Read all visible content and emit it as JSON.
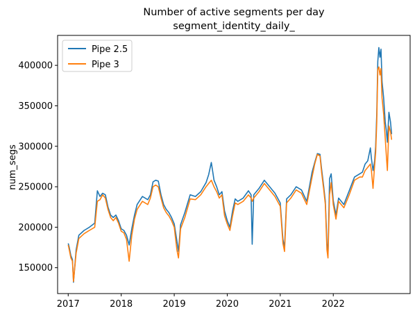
{
  "chart_data": {
    "type": "line",
    "title": "Number of active segments per day",
    "subtitle": "segment_identity_daily_",
    "xlabel": "",
    "ylabel": "num_segs",
    "xlim": [
      2016.8,
      2023.45
    ],
    "ylim": [
      118000,
      437000
    ],
    "x_ticks": [
      2017,
      2018,
      2019,
      2020,
      2021,
      2022
    ],
    "x_tick_labels": [
      "2017",
      "2018",
      "2019",
      "2020",
      "2021",
      "2022"
    ],
    "y_ticks": [
      150000,
      200000,
      250000,
      300000,
      350000,
      400000
    ],
    "y_tick_labels": [
      "150000",
      "200000",
      "250000",
      "300000",
      "350000",
      "400000"
    ],
    "grid": false,
    "legend_position": "top-left",
    "series": [
      {
        "name": "Pipe 2.5",
        "color": "#1f77b4",
        "x": [
          2017.0,
          2017.02,
          2017.05,
          2017.08,
          2017.1,
          2017.15,
          2017.2,
          2017.3,
          2017.4,
          2017.5,
          2017.55,
          2017.6,
          2017.65,
          2017.7,
          2017.75,
          2017.8,
          2017.85,
          2017.9,
          2017.95,
          2018.0,
          2018.05,
          2018.1,
          2018.15,
          2018.2,
          2018.25,
          2018.3,
          2018.4,
          2018.5,
          2018.55,
          2018.6,
          2018.65,
          2018.7,
          2018.75,
          2018.8,
          2018.85,
          2018.9,
          2018.95,
          2019.0,
          2019.05,
          2019.08,
          2019.12,
          2019.2,
          2019.3,
          2019.4,
          2019.5,
          2019.6,
          2019.65,
          2019.7,
          2019.75,
          2019.8,
          2019.85,
          2019.9,
          2019.95,
          2020.0,
          2020.05,
          2020.1,
          2020.15,
          2020.2,
          2020.3,
          2020.4,
          2020.45,
          2020.47,
          2020.5,
          2020.6,
          2020.7,
          2020.8,
          2020.9,
          2021.0,
          2021.05,
          2021.08,
          2021.12,
          2021.2,
          2021.3,
          2021.4,
          2021.5,
          2021.6,
          2021.65,
          2021.7,
          2021.75,
          2021.78,
          2021.82,
          2021.85,
          2021.88,
          2021.9,
          2021.93,
          2021.96,
          2022.0,
          2022.05,
          2022.1,
          2022.2,
          2022.3,
          2022.4,
          2022.5,
          2022.55,
          2022.6,
          2022.65,
          2022.7,
          2022.72,
          2022.75,
          2022.78,
          2022.8,
          2022.82,
          2022.84,
          2022.86,
          2022.88,
          2022.9,
          2022.92,
          2022.95,
          2022.98,
          2023.0,
          2023.02,
          2023.05,
          2023.08,
          2023.1
        ],
        "values": [
          180000,
          175000,
          165000,
          160000,
          132000,
          172000,
          190000,
          196000,
          200000,
          205000,
          245000,
          238000,
          242000,
          240000,
          225000,
          215000,
          212000,
          215000,
          208000,
          198000,
          196000,
          190000,
          178000,
          198000,
          215000,
          228000,
          238000,
          234000,
          240000,
          256000,
          258000,
          257000,
          240000,
          228000,
          222000,
          218000,
          212000,
          204000,
          183000,
          170000,
          203000,
          218000,
          240000,
          238000,
          244000,
          255000,
          265000,
          280000,
          258000,
          250000,
          240000,
          244000,
          220000,
          208000,
          200000,
          220000,
          235000,
          232000,
          236000,
          245000,
          240000,
          179000,
          240000,
          248000,
          258000,
          250000,
          242000,
          230000,
          185000,
          175000,
          235000,
          240000,
          250000,
          246000,
          232000,
          268000,
          280000,
          291000,
          290000,
          272000,
          250000,
          232000,
          180000,
          165000,
          260000,
          266000,
          233000,
          215000,
          236000,
          228000,
          245000,
          262000,
          266000,
          268000,
          278000,
          282000,
          298000,
          285000,
          270000,
          282000,
          300000,
          340000,
          405000,
          422000,
          410000,
          420000,
          380000,
          360000,
          330000,
          320000,
          305000,
          342000,
          330000,
          315000
        ]
      },
      {
        "name": "Pipe 3",
        "color": "#ff7f0e",
        "x": [
          2017.0,
          2017.02,
          2017.05,
          2017.08,
          2017.1,
          2017.15,
          2017.2,
          2017.3,
          2017.4,
          2017.5,
          2017.55,
          2017.6,
          2017.65,
          2017.7,
          2017.75,
          2017.8,
          2017.85,
          2017.9,
          2017.95,
          2018.0,
          2018.05,
          2018.1,
          2018.15,
          2018.2,
          2018.25,
          2018.3,
          2018.4,
          2018.5,
          2018.55,
          2018.6,
          2018.65,
          2018.7,
          2018.75,
          2018.8,
          2018.85,
          2018.9,
          2018.95,
          2019.0,
          2019.05,
          2019.08,
          2019.12,
          2019.2,
          2019.3,
          2019.4,
          2019.5,
          2019.6,
          2019.65,
          2019.7,
          2019.75,
          2019.8,
          2019.85,
          2019.9,
          2019.95,
          2020.0,
          2020.05,
          2020.1,
          2020.15,
          2020.2,
          2020.3,
          2020.4,
          2020.45,
          2020.47,
          2020.5,
          2020.6,
          2020.7,
          2020.8,
          2020.9,
          2021.0,
          2021.05,
          2021.08,
          2021.12,
          2021.2,
          2021.3,
          2021.4,
          2021.5,
          2021.6,
          2021.65,
          2021.7,
          2021.75,
          2021.78,
          2021.82,
          2021.85,
          2021.88,
          2021.9,
          2021.93,
          2021.96,
          2022.0,
          2022.05,
          2022.1,
          2022.2,
          2022.3,
          2022.4,
          2022.5,
          2022.55,
          2022.6,
          2022.65,
          2022.7,
          2022.72,
          2022.75,
          2022.78,
          2022.8,
          2022.82,
          2022.84,
          2022.86,
          2022.88,
          2022.9,
          2022.92,
          2022.95,
          2022.98,
          2023.0,
          2023.02,
          2023.05,
          2023.08,
          2023.1
        ],
        "values": [
          178000,
          172000,
          162000,
          158000,
          133000,
          168000,
          186000,
          192000,
          196000,
          200000,
          232000,
          234000,
          240000,
          236000,
          222000,
          212000,
          208000,
          212000,
          205000,
          195000,
          193000,
          185000,
          158000,
          190000,
          210000,
          222000,
          232000,
          228000,
          236000,
          250000,
          252000,
          250000,
          236000,
          224000,
          218000,
          214000,
          208000,
          200000,
          172000,
          162000,
          198000,
          212000,
          235000,
          234000,
          240000,
          250000,
          254000,
          258000,
          250000,
          244000,
          236000,
          240000,
          214000,
          204000,
          196000,
          214000,
          230000,
          228000,
          232000,
          240000,
          236000,
          232000,
          236000,
          244000,
          254000,
          246000,
          238000,
          226000,
          180000,
          170000,
          230000,
          236000,
          246000,
          242000,
          228000,
          262000,
          278000,
          290000,
          288000,
          268000,
          246000,
          228000,
          172000,
          162000,
          240000,
          255000,
          228000,
          210000,
          232000,
          224000,
          240000,
          258000,
          262000,
          262000,
          270000,
          274000,
          278000,
          270000,
          248000,
          276000,
          292000,
          330000,
          395000,
          398000,
          388000,
          396000,
          360000,
          340000,
          310000,
          290000,
          270000,
          325000,
          318000,
          308000
        ]
      }
    ]
  }
}
